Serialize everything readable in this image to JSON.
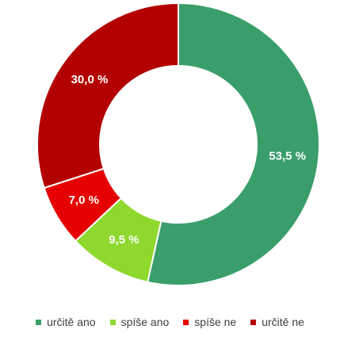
{
  "chart_data": {
    "type": "pie",
    "title": "",
    "categories": [
      "určitě ano",
      "spíše ano",
      "spíše ne",
      "určitě ne"
    ],
    "values": [
      53.5,
      9.5,
      7.0,
      30.0
    ],
    "value_labels": [
      "53,5 %",
      "9,5 %",
      "7,0 %",
      "30,0 %"
    ],
    "colors": [
      "#3a9e6a",
      "#8fd92e",
      "#e60000",
      "#b30000"
    ],
    "donut": true,
    "legend": "bottom"
  }
}
